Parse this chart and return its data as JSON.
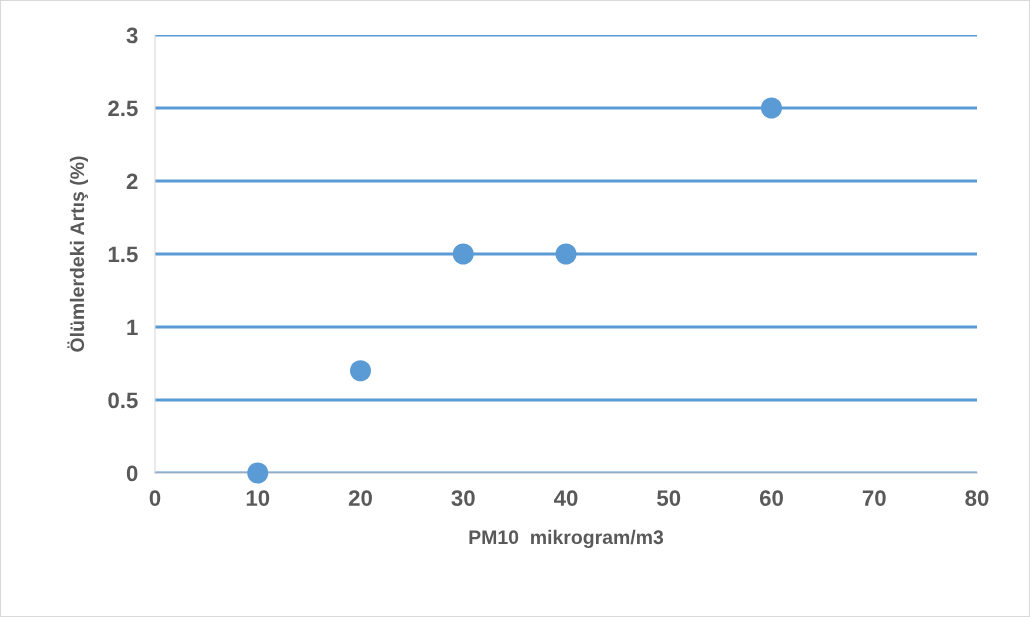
{
  "chart_data": {
    "type": "scatter",
    "xlabel": "PM10  mikrogram/m3",
    "ylabel": "Ölümlerdeki Artış (%)",
    "x": [
      10,
      20,
      30,
      40,
      60
    ],
    "series": [
      {
        "color": "#5b9bd5",
        "values": [
          0,
          0.7,
          1.5,
          1.5,
          2.5
        ]
      }
    ],
    "xlim": [
      0,
      80
    ],
    "xticks": [
      0,
      10,
      20,
      30,
      40,
      50,
      60,
      70,
      80
    ],
    "ylim": [
      0,
      3
    ],
    "yticks": [
      0,
      0.5,
      1,
      1.5,
      2,
      2.5,
      3
    ],
    "grid": "y",
    "marker": "circle"
  }
}
